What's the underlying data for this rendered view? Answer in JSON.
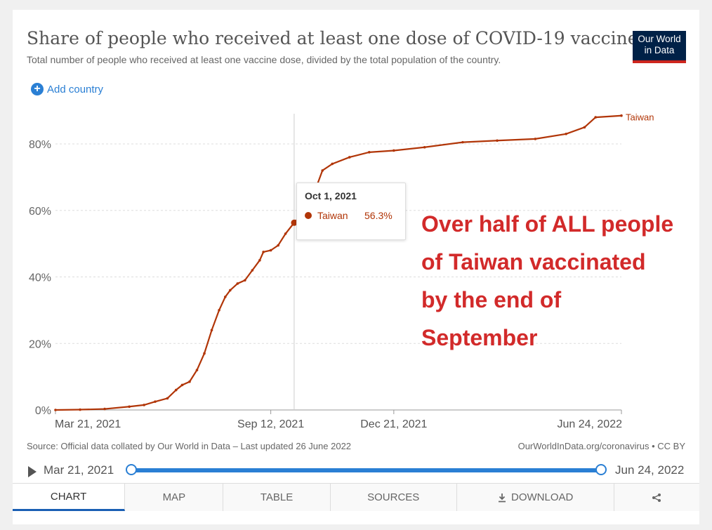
{
  "header": {
    "title": "Share of people who received at least one dose of COVID-19 vaccine",
    "subtitle": "Total number of people who received at least one vaccine dose, divided by the total population of the country.",
    "logo_line1": "Our World",
    "logo_line2": "in Data",
    "add_country_label": "Add country"
  },
  "tooltip": {
    "date": "Oct 1, 2021",
    "name": "Taiwan",
    "value": "56.3%"
  },
  "annotation": {
    "lines": [
      "Over half of ALL people",
      "of Taiwan vaccinated",
      "by the end of",
      "September"
    ]
  },
  "footer": {
    "source": "Source: Official data collated by Our World in Data – Last updated 26 June 2022",
    "credit": "OurWorldInData.org/coronavirus • CC BY"
  },
  "timeline": {
    "start_label": "Mar 21, 2021",
    "end_label": "Jun 24, 2022"
  },
  "tabs": [
    {
      "label": "CHART"
    },
    {
      "label": "MAP"
    },
    {
      "label": "TABLE"
    },
    {
      "label": "SOURCES"
    },
    {
      "label": "DOWNLOAD"
    }
  ],
  "colors": {
    "series": "#b13507",
    "accent": "#2a7fd4",
    "annotation": "#d22a2a"
  },
  "chart_data": {
    "type": "line",
    "title": "Share of people who received at least one dose of COVID-19 vaccine",
    "xlabel": "",
    "ylabel": "",
    "x_ticks": [
      "Mar 21, 2021",
      "Sep 12, 2021",
      "Dec 21, 2021",
      "Jun 24, 2022"
    ],
    "y_ticks": [
      "0%",
      "20%",
      "40%",
      "60%",
      "80%"
    ],
    "ylim": [
      0,
      90
    ],
    "xlim": [
      "2021-03-21",
      "2022-06-24"
    ],
    "grid": true,
    "series": [
      {
        "name": "Taiwan",
        "points": [
          [
            "2021-03-21",
            0.0
          ],
          [
            "2021-04-10",
            0.1
          ],
          [
            "2021-04-30",
            0.3
          ],
          [
            "2021-05-20",
            1.0
          ],
          [
            "2021-06-01",
            1.5
          ],
          [
            "2021-06-10",
            2.5
          ],
          [
            "2021-06-20",
            3.5
          ],
          [
            "2021-06-27",
            6.0
          ],
          [
            "2021-07-02",
            7.5
          ],
          [
            "2021-07-08",
            8.5
          ],
          [
            "2021-07-14",
            12.0
          ],
          [
            "2021-07-20",
            17.0
          ],
          [
            "2021-07-26",
            24.0
          ],
          [
            "2021-08-01",
            30.0
          ],
          [
            "2021-08-06",
            34.0
          ],
          [
            "2021-08-10",
            36.0
          ],
          [
            "2021-08-16",
            38.0
          ],
          [
            "2021-08-22",
            39.0
          ],
          [
            "2021-08-28",
            42.0
          ],
          [
            "2021-09-03",
            45.0
          ],
          [
            "2021-09-06",
            47.5
          ],
          [
            "2021-09-12",
            48.0
          ],
          [
            "2021-09-18",
            49.5
          ],
          [
            "2021-09-24",
            53.0
          ],
          [
            "2021-10-01",
            56.3
          ],
          [
            "2021-10-08",
            59.0
          ],
          [
            "2021-10-14",
            63.0
          ],
          [
            "2021-10-20",
            68.0
          ],
          [
            "2021-10-24",
            72.0
          ],
          [
            "2021-11-01",
            74.0
          ],
          [
            "2021-11-15",
            76.0
          ],
          [
            "2021-12-01",
            77.5
          ],
          [
            "2021-12-21",
            78.0
          ],
          [
            "2022-01-15",
            79.0
          ],
          [
            "2022-02-15",
            80.5
          ],
          [
            "2022-03-15",
            81.0
          ],
          [
            "2022-04-15",
            81.5
          ],
          [
            "2022-05-10",
            83.0
          ],
          [
            "2022-05-25",
            85.0
          ],
          [
            "2022-06-03",
            88.0
          ],
          [
            "2022-06-24",
            88.5
          ]
        ]
      }
    ]
  }
}
